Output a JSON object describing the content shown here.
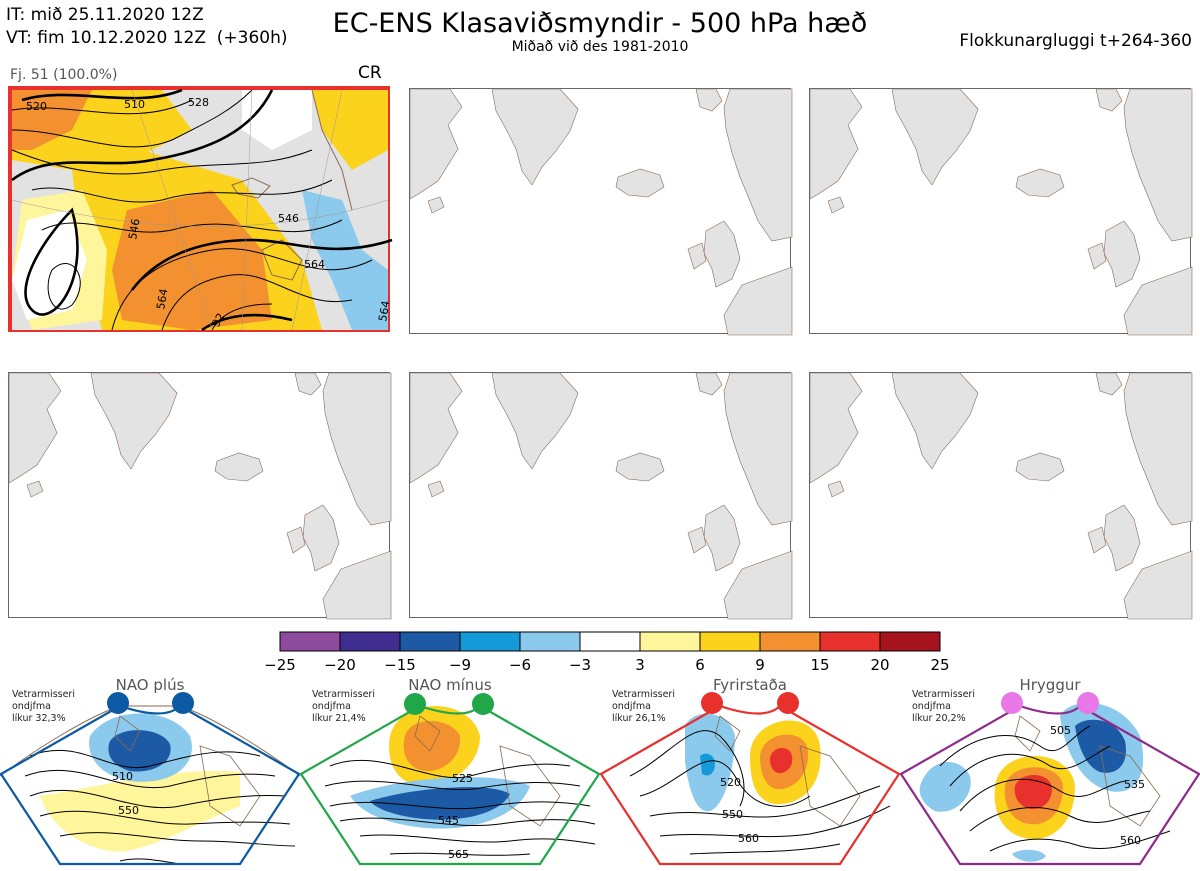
{
  "header": {
    "issue_time": "IT: mið 25.11.2020 12Z",
    "valid_time": "VT: fim 10.12.2020 12Z  (+360h)",
    "title": "EC-ENS Klasaviðsmyndir - 500 hPa hæð",
    "subtitle": "Miðað við des 1981-2010",
    "window": "Flokkunargluggi t+264-360"
  },
  "selected_panel": {
    "member_text": "Fj. 51 (100.0%)",
    "regime_code": "CR",
    "contour_labels": [
      "520",
      "510",
      "528",
      "546",
      "546",
      "564",
      "564",
      "564",
      "92"
    ]
  },
  "colorbar": {
    "ticks": [
      "−25",
      "−20",
      "−15",
      "−9",
      "−6",
      "−3",
      "3",
      "6",
      "9",
      "15",
      "20",
      "25"
    ],
    "colors": [
      "#8e4a9c",
      "#3f2d8f",
      "#1d5aa6",
      "#159ad9",
      "#8ccaed",
      "#ffffff",
      "#fff59b",
      "#fbd21c",
      "#f39130",
      "#e8302c",
      "#a5141e"
    ]
  },
  "colors": {
    "land": "#e3e3e3",
    "coast": "#8a6a52",
    "selected_border": "#e8302c"
  },
  "regimes": [
    {
      "name": "NAO plús",
      "note": "Vetrarmisseri\nondjfma\nlíkur 32,3%",
      "color": "#0b5aa3",
      "labels": [
        "510",
        "550"
      ]
    },
    {
      "name": "NAO mínus",
      "note": "Vetrarmisseri\nondjfma\nlíkur 21,4%",
      "color": "#21a64a",
      "labels": [
        "525",
        "545",
        "565"
      ]
    },
    {
      "name": "Fyrirstaða",
      "note": "Vetrarmisseri\nondjfma\nlíkur 26,1%",
      "color": "#e8302c",
      "labels": [
        "520",
        "550",
        "560"
      ]
    },
    {
      "name": "Hryggur",
      "note": "Vetrarmisseri\nondjfma\nlíkur 20,2%",
      "color": "#8e2a8a",
      "dot_color": "#e878e8",
      "labels": [
        "505",
        "535",
        "560"
      ]
    }
  ]
}
